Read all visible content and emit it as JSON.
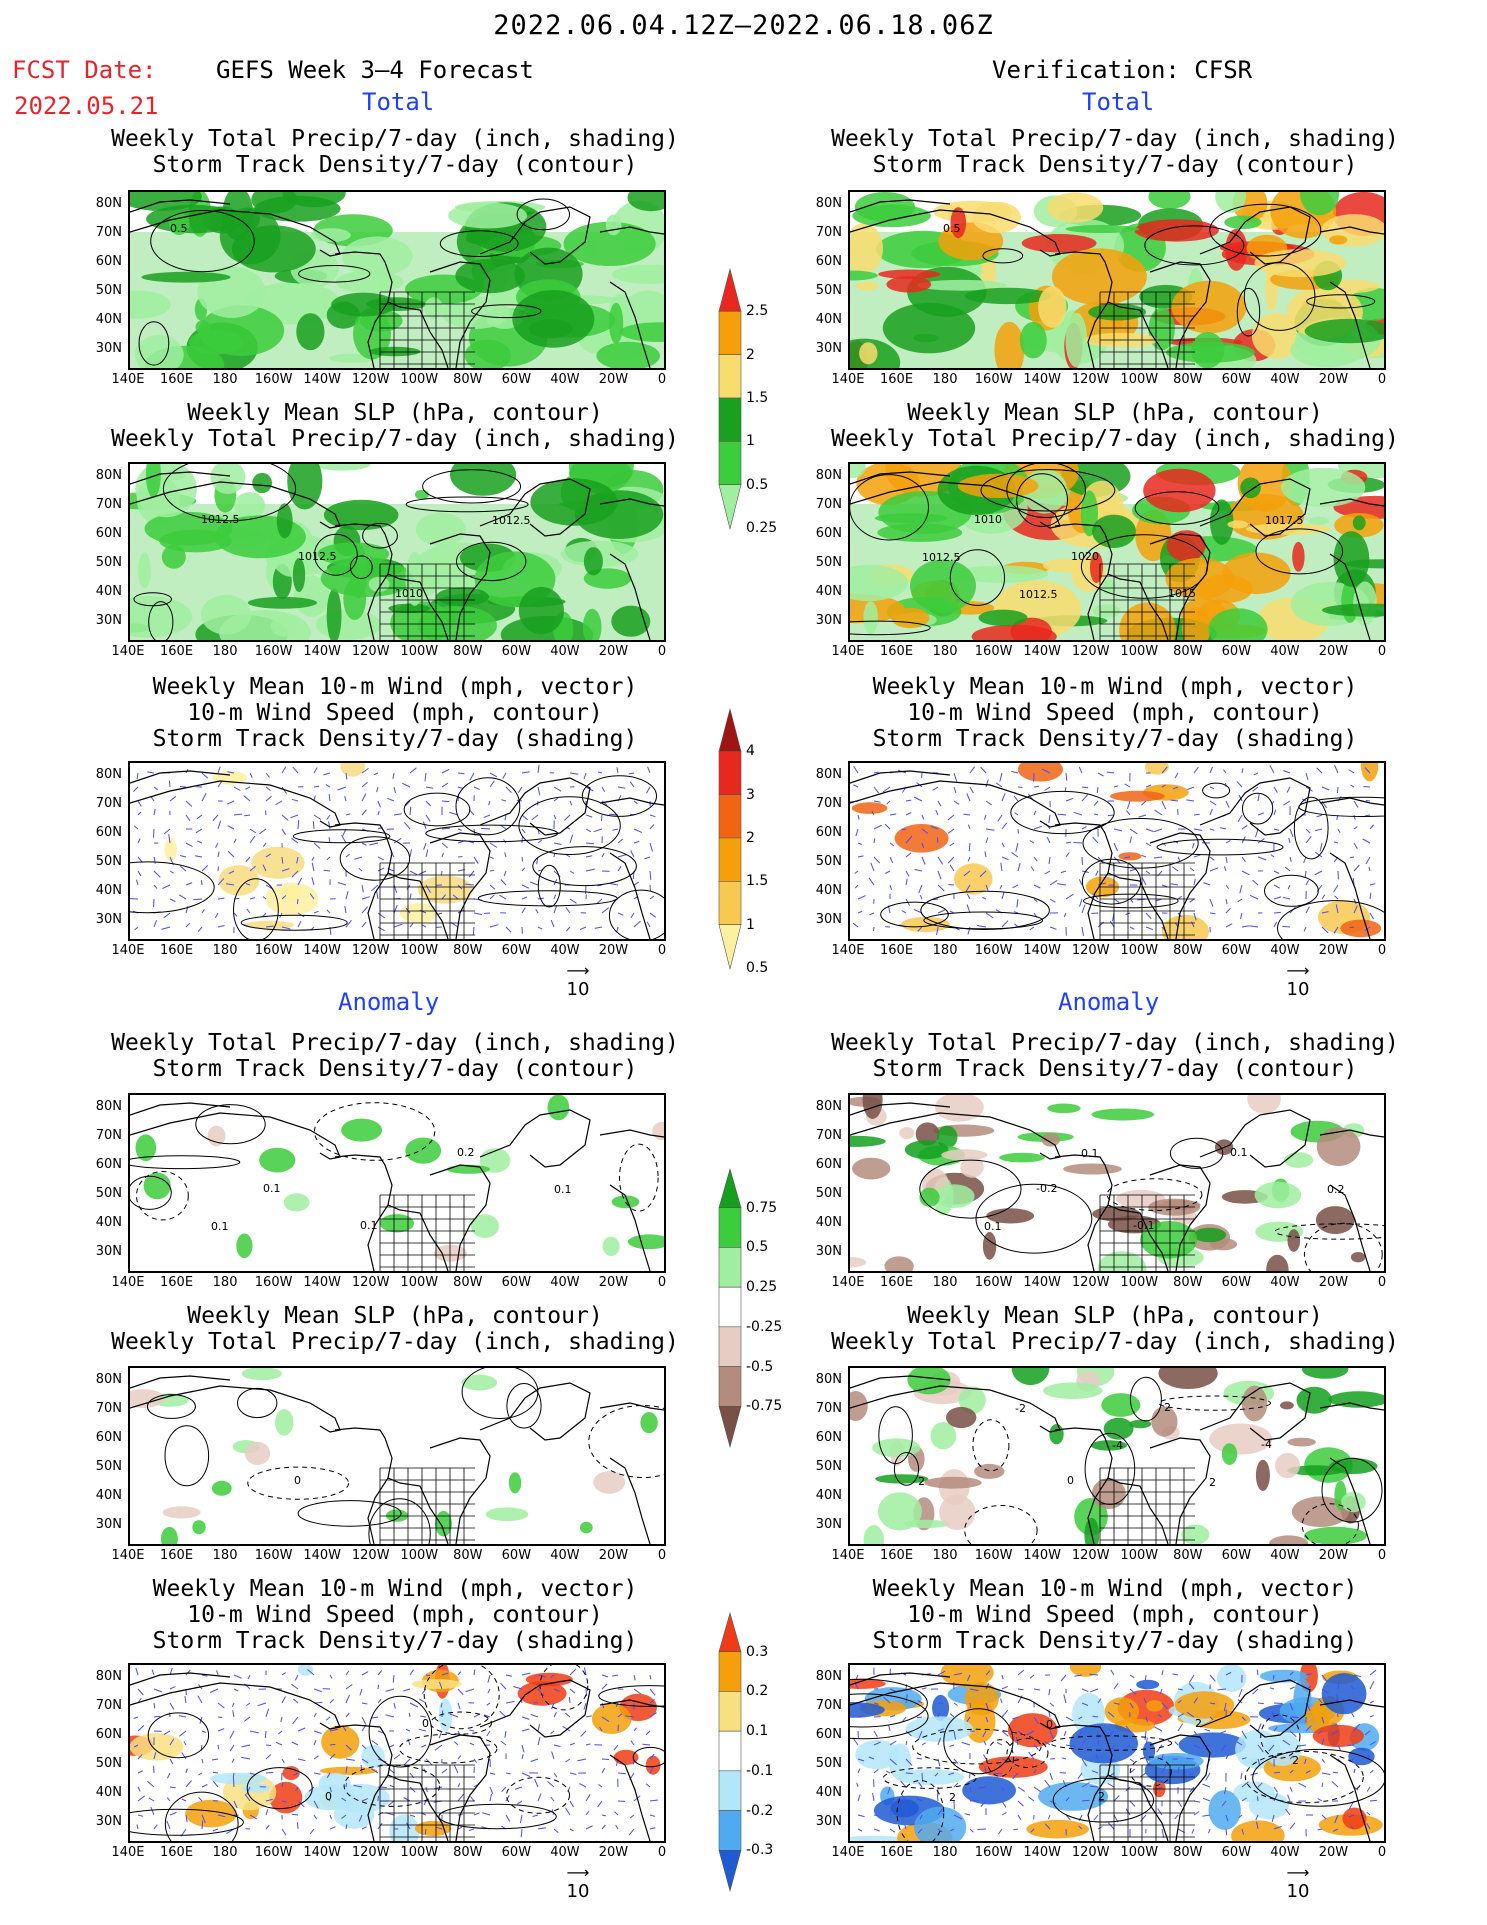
{
  "header": {
    "date_range": "2022.06.04.12Z–2022.06.18.06Z",
    "fcst_label": "FCST Date:",
    "fcst_date": "2022.05.21",
    "left_title": "GEFS Week 3–4 Forecast",
    "right_title": "Verification: CFSR"
  },
  "sections": {
    "total": "Total",
    "anomaly": "Anomaly"
  },
  "panel_titles": {
    "precip_storm": [
      "Weekly Total Precip/7-day (inch, shading)",
      "Storm Track Density/7-day (contour)"
    ],
    "slp_precip": [
      "Weekly Mean SLP (hPa, contour)",
      "Weekly Total Precip/7-day (inch, shading)"
    ],
    "wind": [
      "Weekly Mean 10-m Wind (mph, vector)",
      "10-m Wind Speed (mph, contour)",
      "Storm Track Density/7-day (shading)"
    ]
  },
  "axes": {
    "lat_ticks": [
      "80N",
      "70N",
      "60N",
      "50N",
      "40N",
      "30N"
    ],
    "lon_ticks": [
      "140E",
      "160E",
      "180",
      "160W",
      "140W",
      "120W",
      "100W",
      "80W",
      "60W",
      "40W",
      "20W",
      "0"
    ]
  },
  "vector_ref": "10",
  "colorbars": {
    "total_precip": {
      "labels": [
        "2.5",
        "2",
        "1.5",
        "1",
        "0.5",
        "0.25"
      ],
      "colors": [
        "#e8281e",
        "#f5a00a",
        "#f8dc6e",
        "#19a01e",
        "#3ccd3c",
        "#a0eea0"
      ]
    },
    "total_storm": {
      "labels": [
        "4",
        "3",
        "2",
        "1.5",
        "1",
        "0.5"
      ],
      "colors": [
        "#a01414",
        "#e6281e",
        "#f06414",
        "#f5a00a",
        "#f8c850",
        "#fff0a0"
      ]
    },
    "anom_precip": {
      "labels": [
        "0.75",
        "0.5",
        "0.25",
        "-0.25",
        "-0.5",
        "-0.75"
      ],
      "colors": [
        "#14a01e",
        "#3ccd3c",
        "#a0eea0",
        "#ffffff",
        "#e6cdc3",
        "#b48c7d",
        "#785046"
      ]
    },
    "anom_storm": {
      "labels": [
        "0.3",
        "0.2",
        "0.1",
        "-0.1",
        "-0.2",
        "-0.3"
      ],
      "colors": [
        "#f03c14",
        "#f5a00a",
        "#f8e080",
        "#ffffff",
        "#b4e6fa",
        "#50aaf0",
        "#1e5ad2"
      ]
    }
  },
  "contour_labels": {
    "lt_precip": [
      "0.5"
    ],
    "rt_precip": [
      "0.5"
    ],
    "lt_slp": [
      "1012.5",
      "1012.5",
      "1010",
      "1012.5"
    ],
    "rt_slp": [
      "1010",
      "1020",
      "1015",
      "1017.5",
      "1012.5",
      "1012.5"
    ],
    "la_precip": [
      "0.1",
      "0.1",
      "0.2",
      "0.1",
      "0.1"
    ],
    "ra_precip": [
      "-0.2",
      "-0.1",
      "0.1",
      "0.2",
      "0.1",
      "0.1"
    ],
    "la_slp": [
      "0"
    ],
    "ra_slp": [
      "0",
      "2",
      "-4",
      "2",
      "-2",
      "-4",
      "2"
    ],
    "la_wind": [
      "0",
      "0"
    ],
    "ra_wind": [
      "2",
      "2",
      "2",
      "2",
      "0"
    ]
  },
  "chart_data": {
    "type": "heatmap",
    "panels": [
      {
        "id": "fcst-total-precip-storm",
        "fields": [
          "precip",
          "storm_track"
        ]
      },
      {
        "id": "fcst-total-slp-precip",
        "fields": [
          "slp",
          "precip"
        ]
      },
      {
        "id": "fcst-total-wind",
        "fields": [
          "wind_vector",
          "wind_speed",
          "storm_track"
        ]
      },
      {
        "id": "fcst-anom-precip-storm",
        "fields": [
          "precip_anom",
          "storm_track_anom"
        ]
      },
      {
        "id": "fcst-anom-slp-precip",
        "fields": [
          "slp_anom",
          "precip_anom"
        ]
      },
      {
        "id": "fcst-anom-wind",
        "fields": [
          "wind_vector",
          "wind_speed",
          "storm_track_anom"
        ]
      },
      {
        "id": "verif-total-precip-storm",
        "fields": [
          "precip",
          "storm_track"
        ]
      },
      {
        "id": "verif-total-slp-precip",
        "fields": [
          "slp",
          "precip"
        ]
      },
      {
        "id": "verif-total-wind",
        "fields": [
          "wind_vector",
          "wind_speed",
          "storm_track"
        ]
      },
      {
        "id": "verif-anom-precip-storm",
        "fields": [
          "precip_anom",
          "storm_track_anom"
        ]
      },
      {
        "id": "verif-anom-slp-precip",
        "fields": [
          "slp_anom",
          "precip_anom"
        ]
      },
      {
        "id": "verif-anom-wind",
        "fields": [
          "wind_vector",
          "wind_speed",
          "storm_track_anom"
        ]
      }
    ]
  }
}
